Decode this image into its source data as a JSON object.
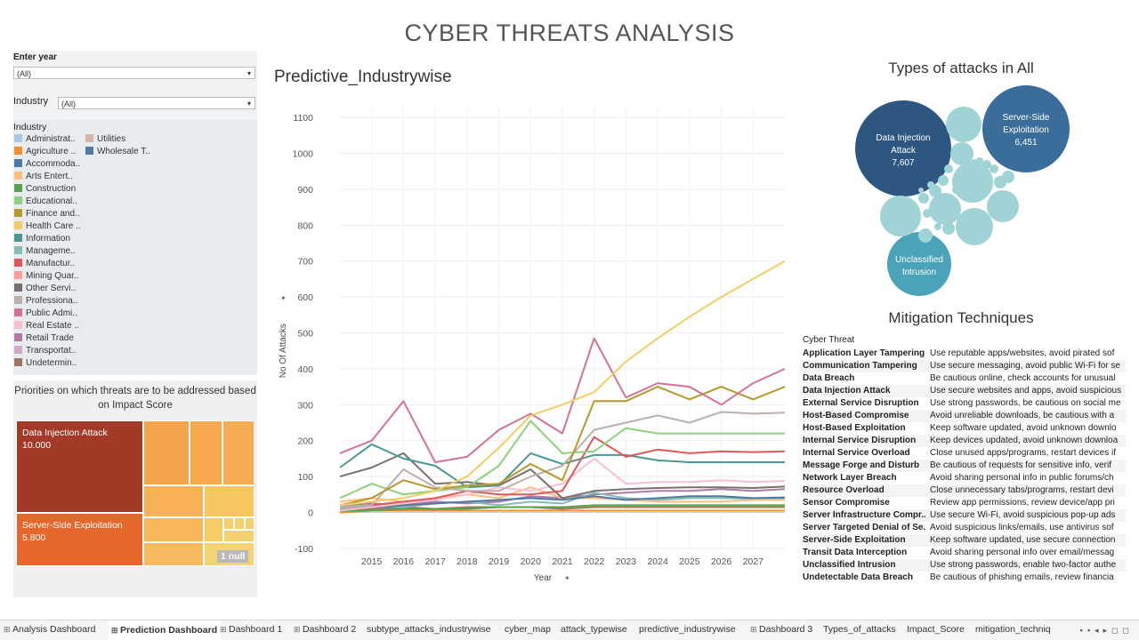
{
  "page_title": "CYBER THREATS ANALYSIS",
  "filters": {
    "year_label": "Enter year",
    "year_value": "(All)",
    "industry_label": "Industry",
    "industry_value": "(All)",
    "legend_title": "Industry",
    "legend_items": [
      {
        "label": "Administrat..",
        "color": "#a9c8e6"
      },
      {
        "label": "Agriculture ..",
        "color": "#f28e2b"
      },
      {
        "label": "Accommoda..",
        "color": "#4e79a7"
      },
      {
        "label": "Arts Entert..",
        "color": "#ffbe7d"
      },
      {
        "label": "Construction",
        "color": "#59a14f"
      },
      {
        "label": "Educational..",
        "color": "#8cd17d"
      },
      {
        "label": "Finance and..",
        "color": "#b6992d"
      },
      {
        "label": "Health Care ..",
        "color": "#f1ce63"
      },
      {
        "label": "Information",
        "color": "#499894"
      },
      {
        "label": "Manageme..",
        "color": "#86bcb6"
      },
      {
        "label": "Manufactur..",
        "color": "#e15759"
      },
      {
        "label": "Mining Quar..",
        "color": "#ff9d9a"
      },
      {
        "label": "Other Servi..",
        "color": "#79706e"
      },
      {
        "label": "Professiona..",
        "color": "#bab0ac"
      },
      {
        "label": "Public Admi..",
        "color": "#d37295"
      },
      {
        "label": "Real Estate ..",
        "color": "#fabfd2"
      },
      {
        "label": "Retail Trade",
        "color": "#b07aa1"
      },
      {
        "label": "Transportat..",
        "color": "#d4a6c8"
      },
      {
        "label": "Undetermin..",
        "color": "#9d7660"
      },
      {
        "label": "Utilities",
        "color": "#d7b5a6"
      },
      {
        "label": "Wholesale T..",
        "color": "#4e79a7"
      }
    ]
  },
  "priorities": {
    "title": "Priorities on which threats are to be addressed based on Impact Score",
    "items": [
      {
        "name": "Data Injection Attack",
        "value": "10.000",
        "color": "#a33a28"
      },
      {
        "name": "Server-Side Exploitation",
        "value": "5.800",
        "color": "#e5672b"
      }
    ],
    "null_badge": "1 null"
  },
  "chart_data": {
    "type": "line",
    "title": "Predictive_Industrywise",
    "xlabel": "Year",
    "ylabel": "No Of Attacks",
    "x": [
      2014,
      2015,
      2016,
      2017,
      2018,
      2019,
      2020,
      2021,
      2022,
      2023,
      2024,
      2025,
      2026,
      2027,
      2028
    ],
    "xticks": [
      "2015",
      "2016",
      "2017",
      "2018",
      "2019",
      "2020",
      "2021",
      "2022",
      "2023",
      "2024",
      "2025",
      "2026",
      "2027"
    ],
    "ylim": [
      -120,
      1130
    ],
    "yticks": [
      -100,
      0,
      100,
      200,
      300,
      400,
      500,
      600,
      700,
      800,
      900,
      1000,
      1100
    ],
    "grid": true,
    "series": [
      {
        "color": "#f1ce63",
        "values": [
          20,
          30,
          40,
          60,
          100,
          180,
          270,
          300,
          335,
          420,
          485,
          545,
          600,
          650,
          700
        ]
      },
      {
        "color": "#d37295",
        "values": [
          165,
          200,
          310,
          140,
          155,
          230,
          275,
          220,
          485,
          320,
          360,
          350,
          300,
          360,
          400
        ]
      },
      {
        "color": "#b6992d",
        "values": [
          20,
          40,
          90,
          65,
          75,
          80,
          135,
          90,
          310,
          310,
          350,
          315,
          350,
          315,
          350
        ]
      },
      {
        "color": "#bab0ac",
        "values": [
          10,
          20,
          120,
          70,
          60,
          60,
          100,
          130,
          230,
          250,
          270,
          250,
          280,
          275,
          278
        ]
      },
      {
        "color": "#8cd17d",
        "values": [
          40,
          80,
          50,
          60,
          70,
          130,
          255,
          165,
          170,
          235,
          220,
          220,
          220,
          220,
          220
        ]
      },
      {
        "color": "#e15759",
        "values": [
          10,
          20,
          30,
          40,
          60,
          50,
          50,
          60,
          210,
          155,
          175,
          165,
          170,
          168,
          170
        ]
      },
      {
        "color": "#499894",
        "values": [
          125,
          190,
          150,
          130,
          70,
          75,
          165,
          135,
          160,
          160,
          145,
          140,
          140,
          140,
          140
        ]
      },
      {
        "color": "#79706e",
        "values": [
          100,
          125,
          165,
          80,
          85,
          75,
          120,
          40,
          60,
          65,
          68,
          70,
          70,
          68,
          72
        ]
      },
      {
        "color": "#fabfd2",
        "values": [
          5,
          15,
          25,
          35,
          50,
          70,
          60,
          80,
          150,
          80,
          85,
          85,
          90,
          85,
          88
        ]
      },
      {
        "color": "#4e79a7",
        "values": [
          5,
          15,
          20,
          25,
          30,
          35,
          40,
          35,
          45,
          35,
          40,
          45,
          45,
          40,
          42
        ]
      },
      {
        "color": "#ffbe7d",
        "values": [
          30,
          40,
          30,
          40,
          50,
          40,
          70,
          40,
          40,
          35,
          30,
          30,
          30,
          35,
          35
        ]
      },
      {
        "color": "#86bcb6",
        "values": [
          15,
          20,
          15,
          25,
          30,
          20,
          30,
          25,
          55,
          40,
          35,
          40,
          40,
          38,
          40
        ]
      },
      {
        "color": "#59a14f",
        "values": [
          5,
          5,
          10,
          10,
          10,
          15,
          15,
          15,
          20,
          20,
          20,
          20,
          20,
          20,
          20
        ]
      },
      {
        "color": "#f28e2b",
        "values": [
          0,
          5,
          5,
          5,
          5,
          5,
          5,
          5,
          5,
          5,
          5,
          5,
          5,
          5,
          5
        ]
      },
      {
        "color": "#9d7660",
        "values": [
          10,
          10,
          15,
          10,
          15,
          15,
          15,
          10,
          15,
          15,
          15,
          15,
          15,
          15,
          15
        ]
      },
      {
        "color": "#b07aa1",
        "values": [
          20,
          25,
          20,
          30,
          25,
          30,
          45,
          40,
          50,
          55,
          60,
          60,
          65,
          60,
          65
        ]
      }
    ]
  },
  "bubbles": {
    "title": "Types of attacks in All",
    "labeled": [
      {
        "name": "Data Injection Attack",
        "value": "7,607",
        "color": "#2d5780"
      },
      {
        "name": "Server-Side Exploitation",
        "value": "6,451",
        "color": "#3a6d9a"
      },
      {
        "name": "Unclassified Intrusion",
        "value": "",
        "color": "#4aa3b8"
      }
    ],
    "small_color": "#9fd3d6"
  },
  "mitigation": {
    "title": "Mitigation Techniques",
    "header": "Cyber Threat",
    "rows": [
      {
        "threat": "Application Layer Tampering",
        "method": "Use reputable apps/websites, avoid pirated sof"
      },
      {
        "threat": "Communication Tampering",
        "method": "Use secure messaging, avoid public Wi-Fi for se"
      },
      {
        "threat": "Data Breach",
        "method": "Be cautious online, check accounts for unusual"
      },
      {
        "threat": "Data Injection Attack",
        "method": "Use secure websites and apps, avoid suspicious"
      },
      {
        "threat": "External Service Disruption",
        "method": "Use strong passwords, be cautious on social me"
      },
      {
        "threat": "Host-Based Compromise",
        "method": "Avoid unreliable downloads, be cautious with a"
      },
      {
        "threat": "Host-Based Exploitation",
        "method": "Keep software updated, avoid unknown downlo"
      },
      {
        "threat": "Internal Service Disruption",
        "method": "Keep devices updated, avoid unknown downloa"
      },
      {
        "threat": "Internal Service Overload",
        "method": "Close unused apps/programs, restart devices if"
      },
      {
        "threat": "Message Forge and Disturb",
        "method": "Be cautious of requests for sensitive info, verif"
      },
      {
        "threat": "Network Layer Breach",
        "method": "Avoid sharing personal info in public forums/ch"
      },
      {
        "threat": "Resource Overload",
        "method": "Close unnecessary tabs/programs, restart devi"
      },
      {
        "threat": "Sensor Compromise",
        "method": "Review app permissions, review device/app pri"
      },
      {
        "threat": "Server Infrastructure Compr..",
        "method": "Use secure Wi-Fi, avoid suspicious pop-up ads"
      },
      {
        "threat": "Server Targeted Denial of Se..",
        "method": "Avoid suspicious links/emails, use antivirus sof"
      },
      {
        "threat": "Server-Side Exploitation",
        "method": "Keep software updated, use secure connection"
      },
      {
        "threat": "Transit Data Interception",
        "method": "Avoid sharing personal info over email/messag"
      },
      {
        "threat": "Unclassified Intrusion",
        "method": "Use strong passwords, enable two-factor authe"
      },
      {
        "threat": "Undetectable Data Breach",
        "method": "Be cautious of phishing emails, review financia"
      }
    ]
  },
  "tabs": [
    {
      "label": "Analysis Dashboard",
      "active": false
    },
    {
      "label": "Prediction Dashboard",
      "active": true
    },
    {
      "label": "Dashboard 1",
      "active": false
    },
    {
      "label": "Dashboard 2",
      "active": false
    },
    {
      "label": "subtype_attacks_industrywise",
      "active": false
    },
    {
      "label": "cyber_map",
      "active": false
    },
    {
      "label": "attack_typewise",
      "active": false
    },
    {
      "label": "predictive_industrywise",
      "active": false
    },
    {
      "label": "Dashboard 3",
      "active": false
    },
    {
      "label": "Types_of_attacks",
      "active": false
    },
    {
      "label": "Impact_Score",
      "active": false
    },
    {
      "label": "mitigation_techniq",
      "active": false
    }
  ]
}
